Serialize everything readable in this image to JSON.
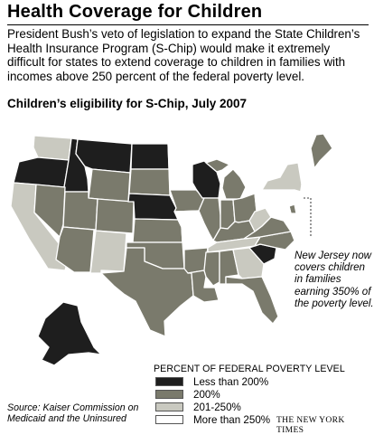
{
  "title": "Health Coverage for Children",
  "intro": "President Bush’s veto of legislation to expand the State Children’s Health Insurance Program (S-Chip) would make it extremely difficult for states to extend coverage to children in families with incomes above 250 percent of the federal poverty level.",
  "map_title": "Children’s eligibility for S-Chip, July 2007",
  "annotation": "New Jersey now covers children in families earning 350% of the poverty level.",
  "legend": {
    "title": "PERCENT OF FEDERAL POVERTY LEVEL",
    "items": [
      {
        "key": "lt200",
        "label": "Less than 200%",
        "color": "#1e1e1e"
      },
      {
        "key": "p200",
        "label": "200%",
        "color": "#7a7a6c"
      },
      {
        "key": "p201_250",
        "label": "201-250%",
        "color": "#c9c9c0"
      },
      {
        "key": "gt250",
        "label": "More than 250%",
        "color": "#ffffff"
      }
    ]
  },
  "source": "Source: Kaiser Commission on Medicaid and the Uninsured",
  "credit": "THE NEW YORK TIMES",
  "states": {
    "WA": "201-250",
    "OR": "lt200",
    "CA": "201-250",
    "ID": "lt200",
    "NV": "200",
    "MT": "lt200",
    "WY": "200",
    "UT": "200",
    "AZ": "200",
    "CO": "200",
    "NM": "201-250",
    "ND": "lt200",
    "SD": "200",
    "NE": "lt200",
    "KS": "200",
    "OK": "200",
    "TX": "200",
    "MN": "gt250",
    "IA": "200",
    "MO": "gt250",
    "AR": "200",
    "LA": "200",
    "WI": "lt200",
    "IL": "200",
    "MI": "200",
    "IN": "200",
    "OH": "200",
    "KY": "200",
    "TN": "201-250",
    "MS": "200",
    "AL": "200",
    "GA": "201-250",
    "FL": "200",
    "SC": "lt200",
    "NC": "200",
    "VA": "200",
    "WV": "201-250",
    "PA": "gt250",
    "NY": "201-250",
    "VT": "gt250",
    "NH": "gt250",
    "ME": "200",
    "MA": "gt250",
    "RI": "gt250",
    "CT": "gt250",
    "NJ": "gt250",
    "DE": "200",
    "MD": "gt250",
    "AK": "lt200",
    "HI": "gt250"
  }
}
